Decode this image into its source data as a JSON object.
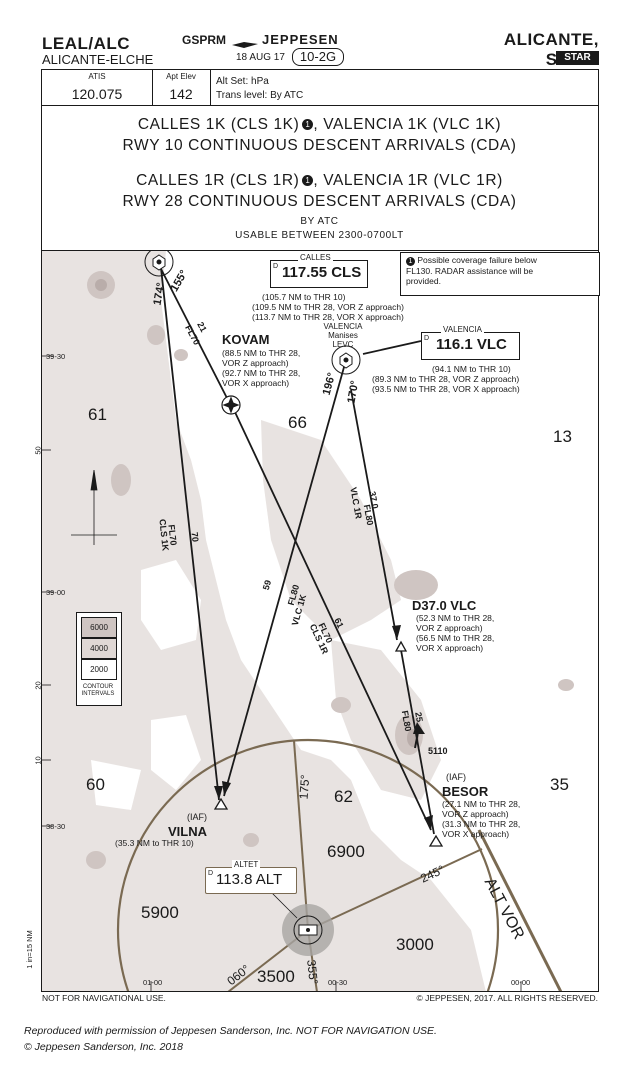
{
  "header": {
    "icao_iata": "LEAL/ALC",
    "airport": "ALICANTE-ELCHE",
    "prefix": "GSPRM",
    "brand": "JEPPESEN",
    "date": "18 AUG 17",
    "chart_id": "10-2G",
    "city": "ALICANTE, SPAIN",
    "chart_type": "STAR"
  },
  "infobar": {
    "atis_label": "ATIS",
    "atis_freq": "120.075",
    "elev_label": "Apt Elev",
    "elev_value": "142",
    "altset": "Alt Set: hPa",
    "translevel": "Trans level: By ATC"
  },
  "title": {
    "line1a": "CALLES 1K (CLS 1K)",
    "line1b": ", VALENCIA 1K (VLC 1K)",
    "line2": "RWY 10 CONTINUOUS DESCENT ARRIVALS (CDA)",
    "line3a": "CALLES 1R (CLS 1R)",
    "line3b": ", VALENCIA 1R (VLC 1R)",
    "line4": "RWY 28 CONTINUOUS DESCENT ARRIVALS (CDA)",
    "line5": "BY ATC",
    "line6": "USABLE BETWEEN 2300-0700LT",
    "note_marker": "1"
  },
  "note": {
    "marker": "1",
    "text1": "Possible coverage failure below",
    "text2": "FL130. RADAR assistance will be",
    "text3": "provided."
  },
  "navaids": {
    "calles": {
      "label": "CALLES",
      "d": "D",
      "freq": "117.55 CLS",
      "dist": "(105.7 NM to THR 10)",
      "z": "(109.5 NM to THR 28, VOR Z approach)",
      "x": "(113.7 NM to THR 28, VOR X approach)"
    },
    "valencia": {
      "label": "VALENCIA",
      "d": "D",
      "freq": "116.1 VLC",
      "dist": "(94.1 NM to THR 10)",
      "z": "(89.3 NM to THR 28, VOR Z approach)",
      "x": "(93.5 NM to THR 28, VOR X approach)",
      "airport": "VALENCIA",
      "airport2": "Manises",
      "airport3": "LEVC"
    },
    "altet": {
      "label": "ALTET",
      "d": "D",
      "freq": "113.8 ALT",
      "rose_label": "ALT VOR"
    }
  },
  "fixes": {
    "kovam": {
      "name": "KOVAM",
      "l1": "(88.5 NM to THR 28,",
      "l2": "VOR Z approach)",
      "l3": "(92.7 NM to THR 28,",
      "l4": "VOR X approach)"
    },
    "d37": {
      "name": "D37.0 VLC",
      "l1": "(52.3 NM to THR 28,",
      "l2": "VOR Z approach)",
      "l3": "(56.5 NM to THR 28,",
      "l4": "VOR X approach)"
    },
    "besor": {
      "iaf": "(IAF)",
      "name": "BESOR",
      "l1": "(27.1 NM to THR 28,",
      "l2": "VOR Z approach)",
      "l3": "(31.3 NM to THR 28,",
      "l4": "VOR X approach)"
    },
    "vilna": {
      "iaf": "(IAF)",
      "name": "VILNA",
      "l1": "(35.3 NM to THR 10)"
    }
  },
  "routes": {
    "cls_r155": "155°",
    "cls_r174": "174°",
    "cls_fl": "FL70",
    "cls_d21": "21",
    "cls1k_fl": "FL70",
    "cls1k_name": "CLS 1K",
    "cls1k_d70": "70",
    "cls1r_fl": "FL70",
    "cls1r_name": "CLS 1R",
    "cls1r_d61": "61",
    "vlc_r196": "196°",
    "vlc_r170": "170°",
    "vlc1k_fl": "FL80",
    "vlc1k_name": "VLC 1K",
    "vlc1k_d59": "59",
    "vlc1r_fl": "FL80",
    "vlc1r_name": "VLC 1R",
    "vlc1r_d37": "37.0",
    "d37_fl": "FL80",
    "d37_d25": "25"
  },
  "sectors": {
    "s61": "61",
    "s66": "66",
    "s13": "13",
    "s60": "60",
    "s62": "62",
    "s35": "35"
  },
  "msa": {
    "a6900": "6900",
    "a5900": "5900",
    "a3000": "3000",
    "a3500": "3500",
    "b175": "175°",
    "b245": "245°",
    "b060": "060°",
    "b355": "355°"
  },
  "terrain": {
    "peak": "5110",
    "contour_6000": "6000",
    "contour_4000": "4000",
    "contour_2000": "2000",
    "contour_label1": "CONTOUR",
    "contour_label2": "INTERVALS"
  },
  "grid": {
    "lat1": "39-30",
    "lat2": "50",
    "lat3": "39-00",
    "lat4": "20",
    "lat5": "10",
    "lat6": "38-30",
    "lat7": "1 in=15 NM",
    "lon1": "01-00",
    "lon2": "00-30",
    "lon3": "00-00"
  },
  "footer": {
    "left": "NOT FOR NAVIGATIONAL USE.",
    "right": "© JEPPESEN, 2017. ALL RIGHTS RESERVED.",
    "repro1": "Reproduced with permission of Jeppesen Sanderson, Inc. NOT FOR NAVIGATION USE.",
    "repro2": "© Jeppesen Sanderson, Inc. 2018"
  },
  "colors": {
    "ink": "#1a1a1a",
    "terrain_low": "#e8e3e1",
    "terrain_mid": "#cfc5c2",
    "terrain_high": "#b9adaa",
    "msa_brown": "#7a6a52"
  }
}
